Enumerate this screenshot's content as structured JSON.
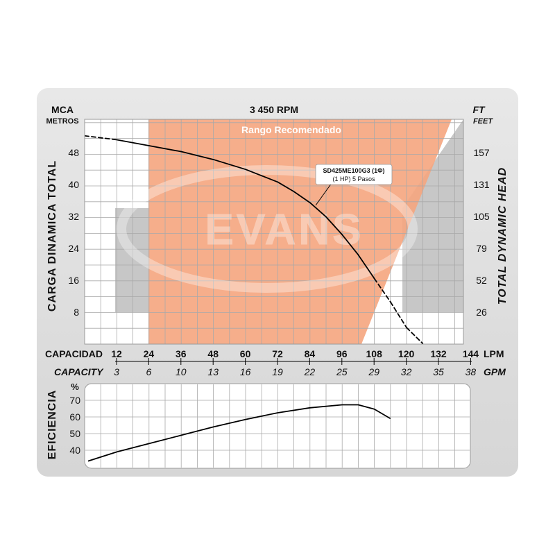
{
  "chart_data": [
    {
      "type": "line",
      "title": "3 450 RPM",
      "subtitle": "Rango Recomendado",
      "left_unit": "MCA",
      "left_unit_sub": "METROS",
      "right_unit": "FT",
      "right_unit_sub": "FEET",
      "ylabel": "CARGA DINAMICA TOTAL",
      "ylabel_right": "TOTAL DYNAMIC HEAD",
      "xlabel": "CAPACIDAD",
      "xlabel_unit": "LPM",
      "xlabel_secondary": "CAPACITY",
      "xlabel_secondary_unit": "GPM",
      "xlim": [
        0,
        144
      ],
      "ylim": [
        0,
        56
      ],
      "x_ticks": [
        "12",
        "24",
        "36",
        "48",
        "60",
        "72",
        "84",
        "96",
        "108",
        "120",
        "132",
        "144"
      ],
      "x_ticks_secondary": [
        "3",
        "6",
        "10",
        "13",
        "16",
        "19",
        "22",
        "25",
        "29",
        "32",
        "35",
        "38"
      ],
      "y_ticks": [
        "8",
        "16",
        "24",
        "32",
        "40",
        "48"
      ],
      "y_ticks_right": [
        "26",
        "52",
        "79",
        "105",
        "131",
        "157"
      ],
      "watermark": "EVANS",
      "recommended_range_x": [
        24,
        110
      ],
      "series": [
        {
          "name": "SD425ME100G3 (1Φ)",
          "name_detail": "(1 HP)  5 Pasos",
          "color": "#000000",
          "x": [
            0,
            12,
            24,
            36,
            48,
            60,
            72,
            78,
            84,
            90,
            96,
            102,
            108,
            114,
            120,
            126
          ],
          "y": [
            52.5,
            51.5,
            50,
            48.5,
            46.5,
            44,
            40.8,
            38.4,
            35.6,
            32,
            27.5,
            22.4,
            16.4,
            10.5,
            4,
            0
          ],
          "dashed_ranges": [
            [
              0,
              12
            ],
            [
              108,
              126
            ]
          ]
        }
      ]
    },
    {
      "type": "line",
      "ylabel": "EFICIENCIA",
      "y_unit": "%",
      "xlim": [
        0,
        144
      ],
      "ylim": [
        33,
        75
      ],
      "y_ticks": [
        "40",
        "50",
        "60",
        "70"
      ],
      "series": [
        {
          "name": "",
          "color": "#000000",
          "x": [
            0,
            12,
            24,
            36,
            48,
            60,
            72,
            84,
            96,
            102,
            108,
            114
          ],
          "y": [
            33.5,
            39,
            44,
            49,
            54,
            58.5,
            62.5,
            65.5,
            67.3,
            67.3,
            64.7,
            59
          ]
        }
      ]
    }
  ],
  "colors": {
    "panel": "#e0e0e0",
    "grid": "#a9a9a9",
    "recommended_band": "#f5a57e",
    "gray_shade": "#c7c7c7",
    "curve": "#000000"
  }
}
